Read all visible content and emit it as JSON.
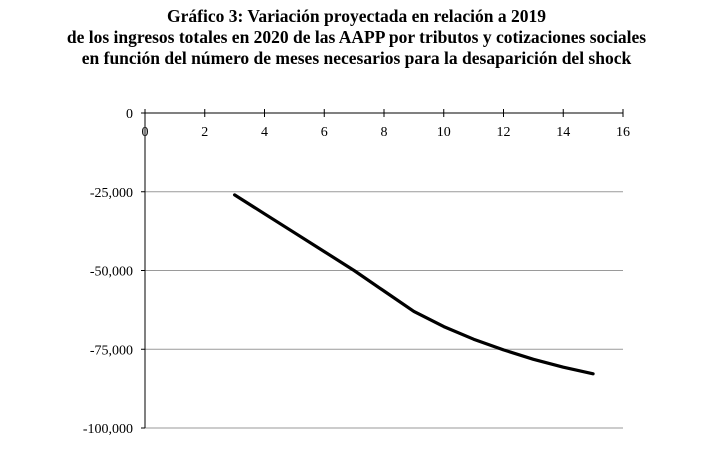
{
  "chart_data": {
    "type": "line",
    "title_lines": [
      "Gráfico 3: Variación proyectada en relación a 2019",
      "de los ingresos totales en 2020 de las AAPP por tributos y cotizaciones sociales",
      "en función del número de meses necesarios para la desaparición del shock"
    ],
    "xlabel": "",
    "ylabel": "",
    "xlim": [
      0,
      16
    ],
    "ylim": [
      -100000,
      0
    ],
    "x_ticks": [
      0,
      2,
      4,
      6,
      8,
      10,
      12,
      14,
      16
    ],
    "x_tick_labels": [
      "0",
      "2",
      "4",
      "6",
      "8",
      "10",
      "12",
      "14",
      "16"
    ],
    "y_ticks": [
      0,
      -25000,
      -50000,
      -75000,
      -100000
    ],
    "y_tick_labels": [
      "0",
      "-25,000",
      "-50,000",
      "-75,000",
      "-100,000"
    ],
    "x_axis_position": "top",
    "grid": "horizontal",
    "legend": "none",
    "series": [
      {
        "x": [
          3,
          4,
          5,
          6,
          7,
          8,
          9,
          10,
          11,
          12,
          13,
          14,
          15
        ],
        "y": [
          -26000,
          -32000,
          -38000,
          -44000,
          -50000,
          -56500,
          -63000,
          -67800,
          -71800,
          -75200,
          -78200,
          -80700,
          -82800
        ],
        "color": "#000000"
      }
    ]
  }
}
